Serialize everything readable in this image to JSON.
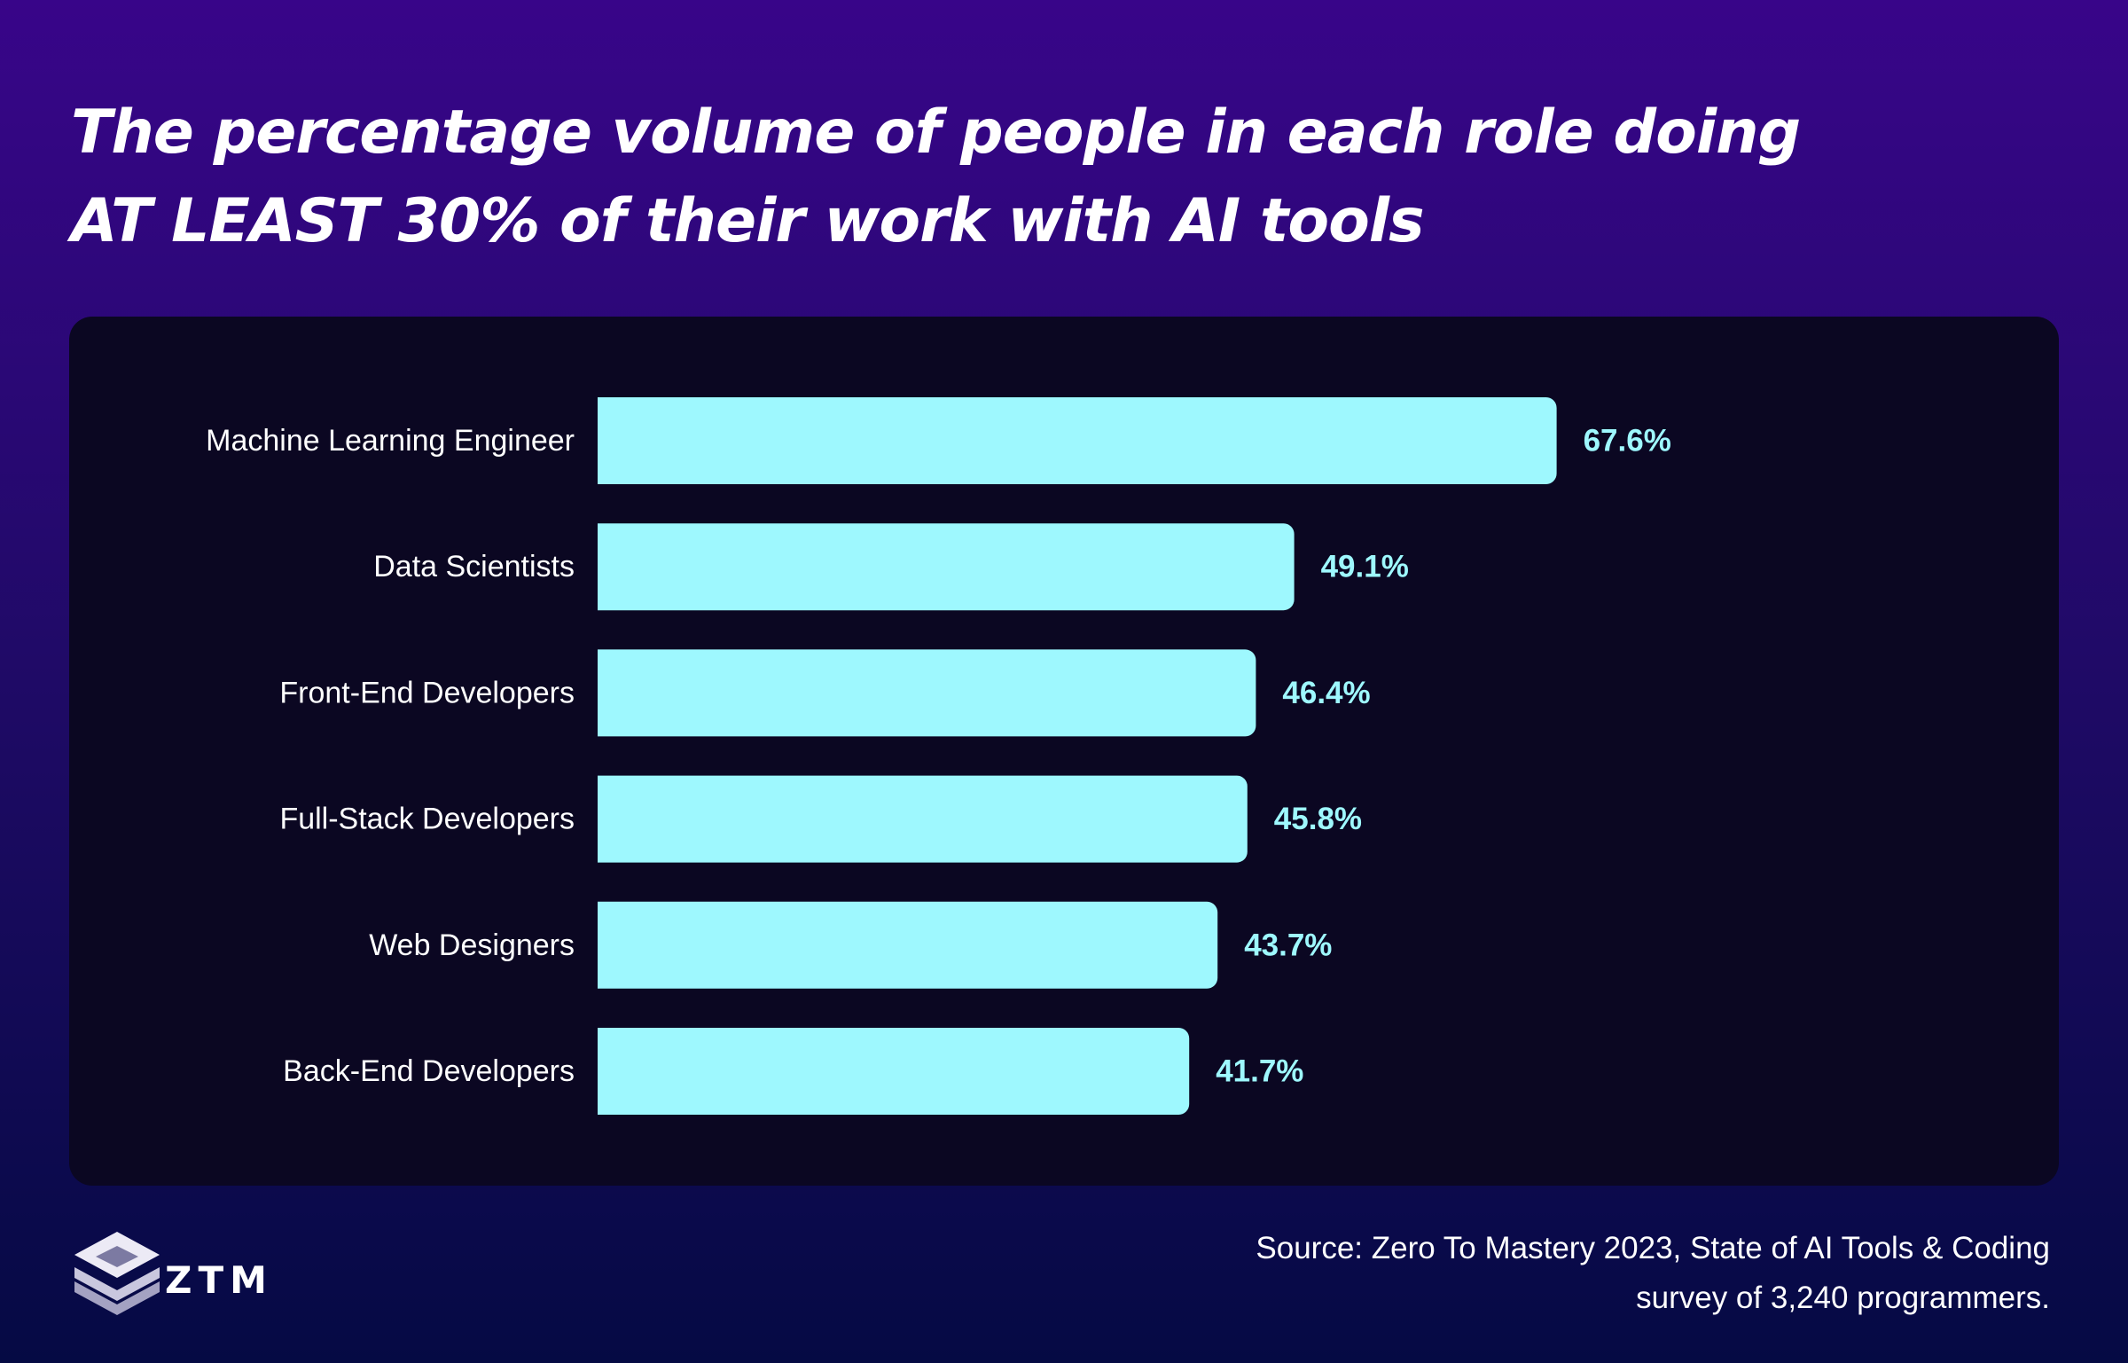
{
  "title": {
    "line1": "The percentage volume of people in each role doing",
    "line2": "AT LEAST 30% of their work with AI tools"
  },
  "chart_data": {
    "type": "bar",
    "orientation": "horizontal",
    "title": "The percentage volume of people in each role doing AT LEAST 30% of their work with AI tools",
    "categories": [
      "Machine Learning Engineer",
      "Data Scientists",
      "Front-End Developers",
      "Full-Stack Developers",
      "Web Designers",
      "Back-End Developers"
    ],
    "values": [
      67.6,
      49.1,
      46.4,
      45.8,
      43.7,
      41.7
    ],
    "value_labels": [
      "67.6%",
      "49.1%",
      "46.4%",
      "45.8%",
      "43.7%",
      "41.7%"
    ],
    "xlim": [
      0,
      100
    ],
    "xlabel": "",
    "ylabel": "",
    "grid": false,
    "legend": "none",
    "colors": {
      "bar": "#9ef8fe",
      "value_label": "#9ef8fe",
      "category_label": "#ffffff",
      "panel": "#0b0722"
    }
  },
  "logo": {
    "text": "ZTM",
    "icon": "ztm-logo-icon"
  },
  "source": {
    "line1": "Source: Zero To Mastery 2023, State of AI Tools & Coding",
    "line2": "survey of 3,240 programmers."
  },
  "colors": {
    "background_top": "#380589",
    "background_bottom": "#050a44",
    "title": "#ffffff"
  }
}
